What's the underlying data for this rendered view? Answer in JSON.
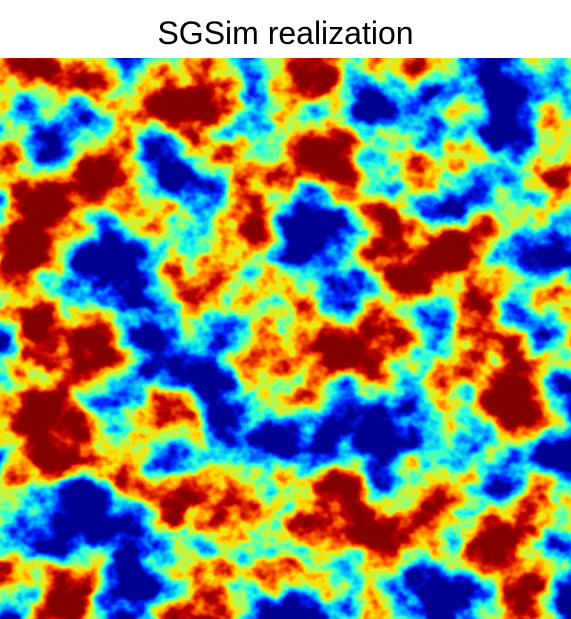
{
  "figure": {
    "title": "SGSim realization"
  },
  "colormap": {
    "name": "jet",
    "stops": [
      "#00008f",
      "#0020ff",
      "#00a0ff",
      "#20ffe0",
      "#a0ff60",
      "#ffe000",
      "#ff6000",
      "#c00000",
      "#800000"
    ]
  }
}
